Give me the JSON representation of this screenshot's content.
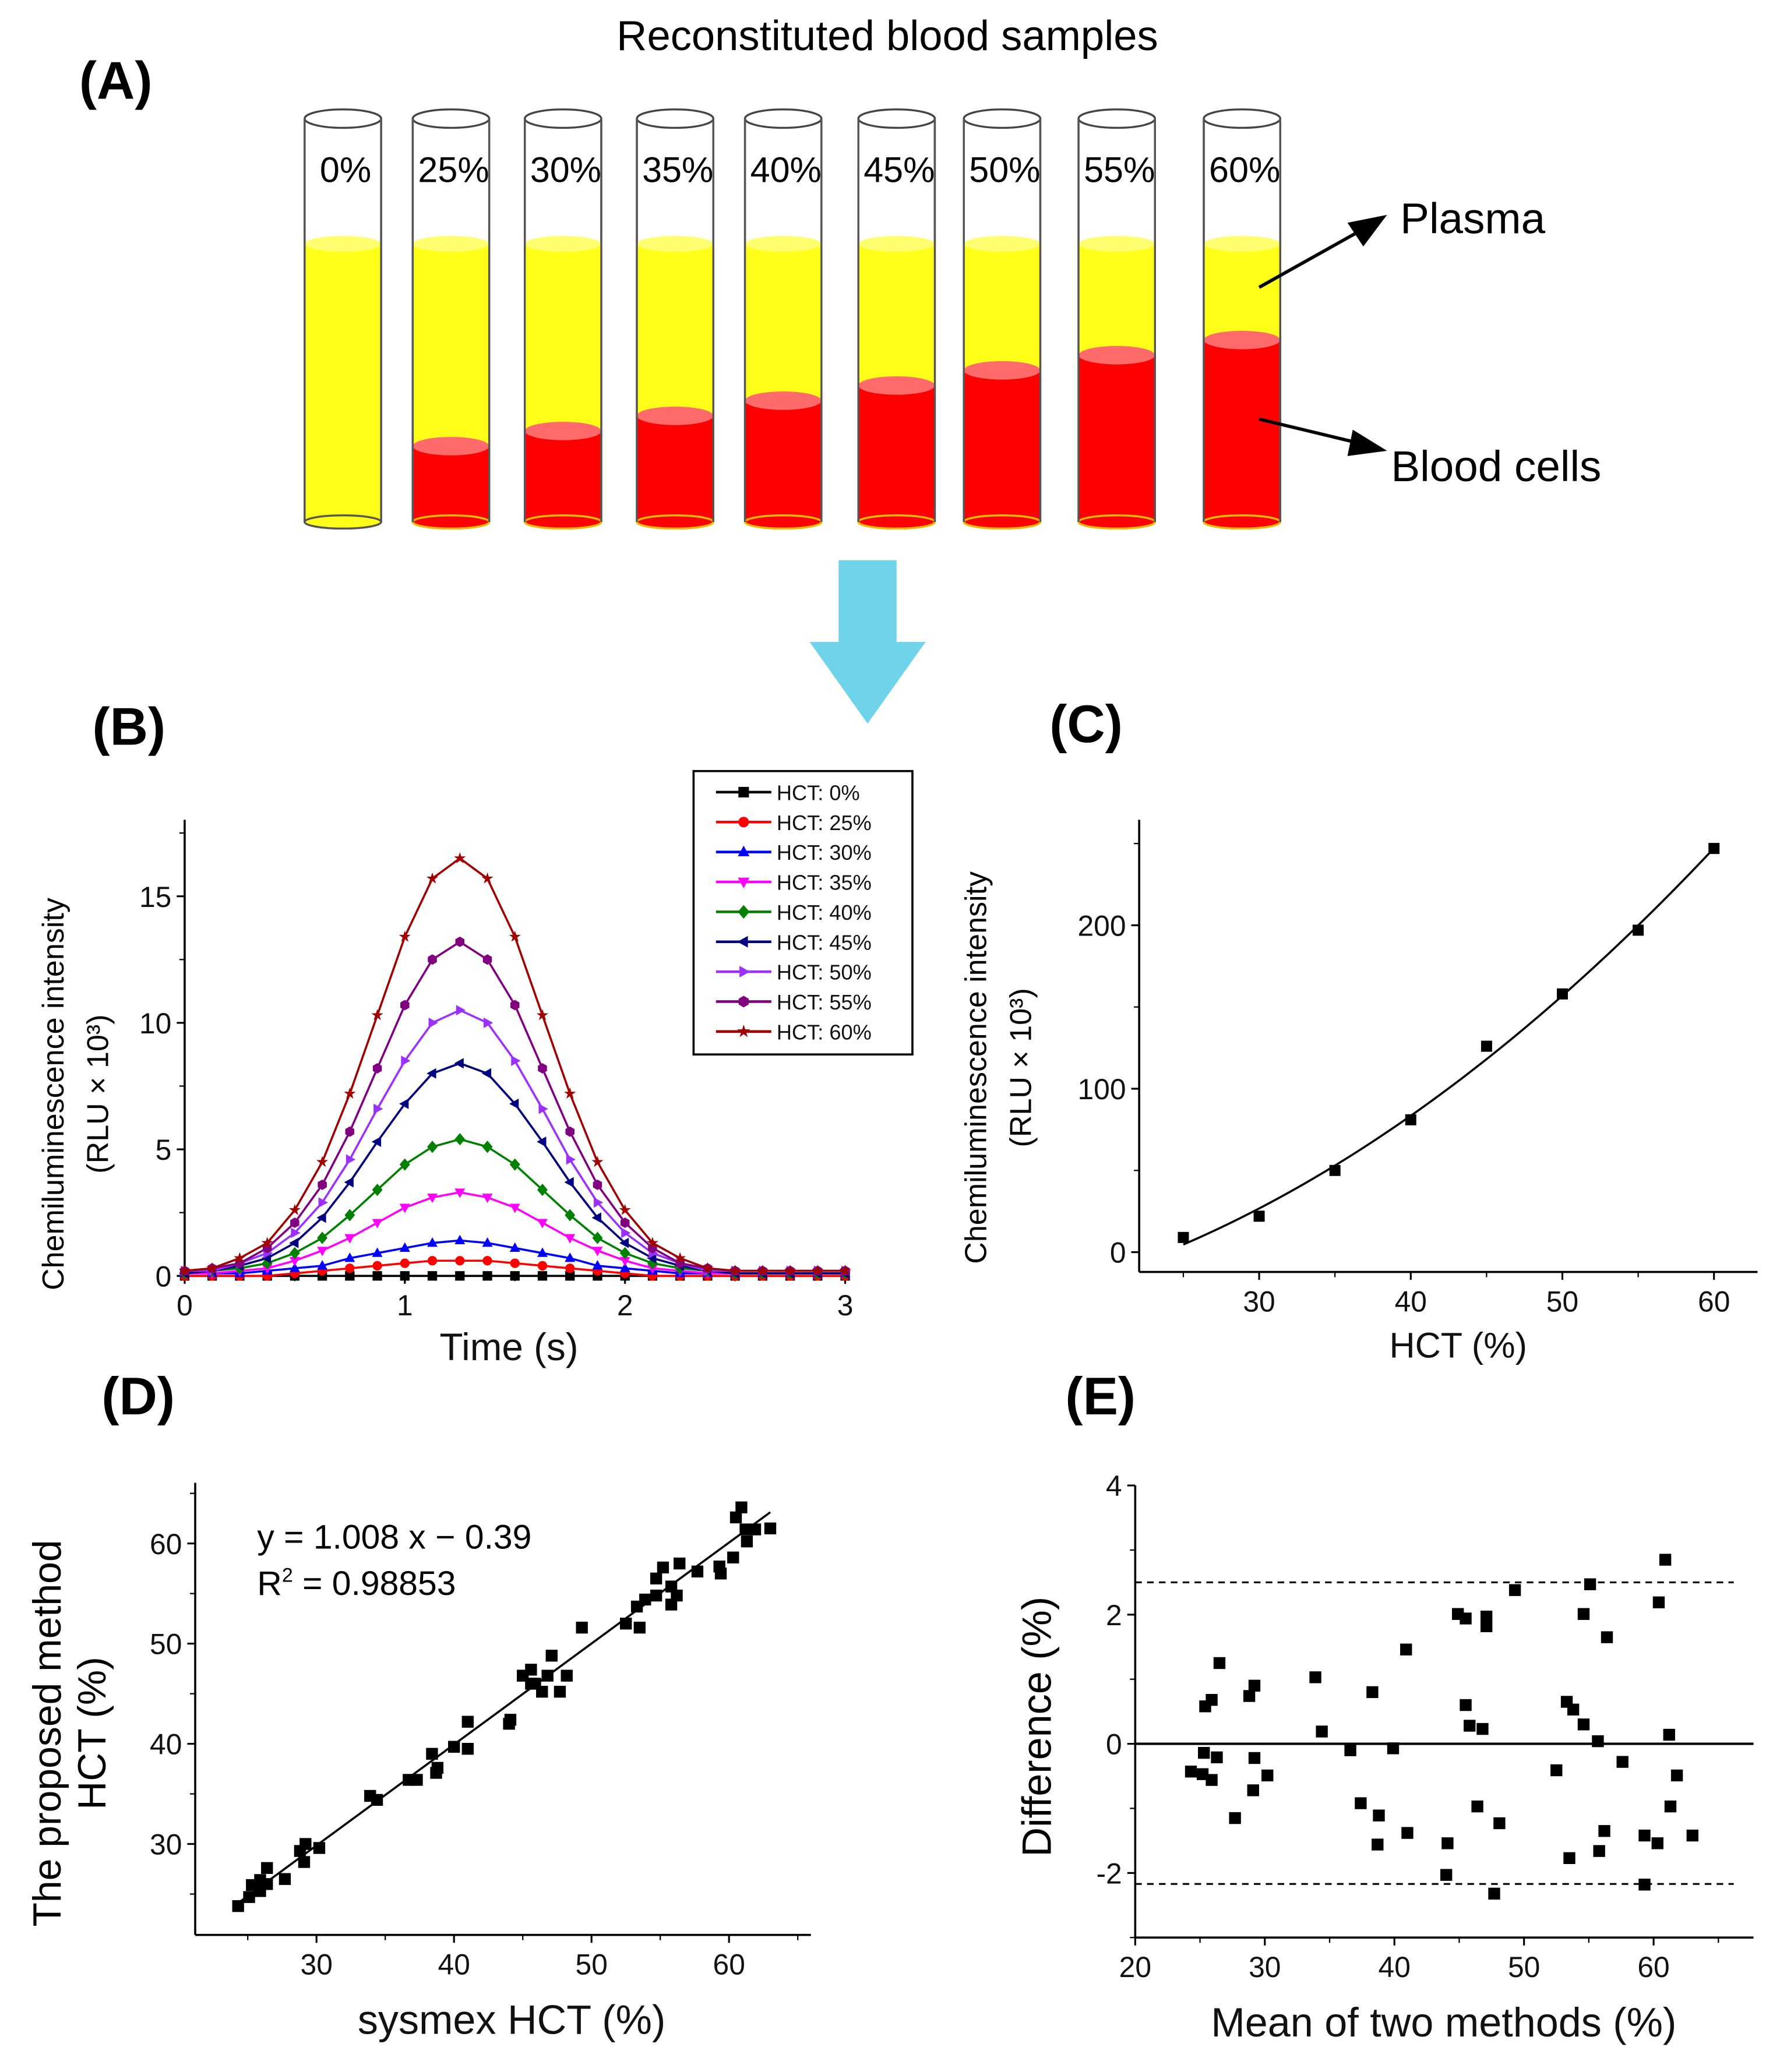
{
  "panelA": {
    "label": "(A)",
    "title": "Reconstituted blood samples",
    "tubes": [
      {
        "label": "0%",
        "hct": 0
      },
      {
        "label": "25%",
        "hct": 25
      },
      {
        "label": "30%",
        "hct": 30
      },
      {
        "label": "35%",
        "hct": 35
      },
      {
        "label": "40%",
        "hct": 40
      },
      {
        "label": "45%",
        "hct": 45
      },
      {
        "label": "50%",
        "hct": 50
      },
      {
        "label": "55%",
        "hct": 55
      },
      {
        "label": "60%",
        "hct": 60
      }
    ],
    "plasma_label": "Plasma",
    "cells_label": "Blood cells",
    "colors": {
      "plasma": "#ffff1a",
      "cells": "#ff0000",
      "arrow": "#6fd4ea"
    }
  },
  "chart_data": [
    {
      "panel_label": "(B)",
      "type": "line",
      "xlabel": "Time (s)",
      "ylabel": "Chemiluminescence intensity",
      "ylabel2": "(RLU × 10³)",
      "xlim": [
        0,
        3
      ],
      "ylim": [
        0,
        18
      ],
      "xticks": [
        "0",
        "1",
        "2",
        "3"
      ],
      "yticks": [
        "0",
        "5",
        "10",
        "15"
      ],
      "legend_position": "top-right",
      "x": [
        0,
        0.125,
        0.25,
        0.375,
        0.5,
        0.625,
        0.75,
        0.875,
        1.0,
        1.125,
        1.25,
        1.375,
        1.5,
        1.625,
        1.75,
        1.875,
        2.0,
        2.125,
        2.25,
        2.375,
        2.5,
        2.625,
        2.75,
        2.875,
        3.0
      ],
      "series": [
        {
          "name": "HCT: 0%",
          "color": "#000000",
          "marker": "square",
          "values": [
            0,
            0,
            0,
            0,
            0,
            0,
            0,
            0,
            0,
            0,
            0,
            0,
            0,
            0,
            0,
            0,
            0,
            0,
            0,
            0,
            0,
            0,
            0,
            0,
            0
          ]
        },
        {
          "name": "HCT: 25%",
          "color": "#ff0000",
          "marker": "circle",
          "values": [
            0,
            0,
            0,
            0,
            0.1,
            0.2,
            0.3,
            0.4,
            0.5,
            0.6,
            0.6,
            0.6,
            0.5,
            0.4,
            0.3,
            0.2,
            0.1,
            0,
            0,
            0,
            0,
            0,
            0,
            0,
            0
          ]
        },
        {
          "name": "HCT: 30%",
          "color": "#0000ff",
          "marker": "triangle-up",
          "values": [
            0.1,
            0.1,
            0.1,
            0.2,
            0.3,
            0.4,
            0.7,
            0.9,
            1.1,
            1.3,
            1.4,
            1.3,
            1.1,
            0.9,
            0.7,
            0.4,
            0.3,
            0.2,
            0.1,
            0.1,
            0.1,
            0.1,
            0.1,
            0.1,
            0.1
          ]
        },
        {
          "name": "HCT: 35%",
          "color": "#ff00ff",
          "marker": "triangle-down",
          "values": [
            0.1,
            0.1,
            0.2,
            0.3,
            0.6,
            1.0,
            1.5,
            2.1,
            2.7,
            3.1,
            3.3,
            3.1,
            2.7,
            2.1,
            1.5,
            1.0,
            0.6,
            0.3,
            0.2,
            0.1,
            0.1,
            0.1,
            0.1,
            0.1,
            0.1
          ]
        },
        {
          "name": "HCT: 40%",
          "color": "#008000",
          "marker": "diamond",
          "values": [
            0.1,
            0.2,
            0.3,
            0.5,
            0.9,
            1.5,
            2.4,
            3.4,
            4.4,
            5.1,
            5.4,
            5.1,
            4.4,
            3.4,
            2.4,
            1.5,
            0.9,
            0.5,
            0.3,
            0.2,
            0.1,
            0.1,
            0.1,
            0.1,
            0.1
          ]
        },
        {
          "name": "HCT: 45%",
          "color": "#000080",
          "marker": "triangle-left",
          "values": [
            0.1,
            0.2,
            0.4,
            0.7,
            1.3,
            2.3,
            3.7,
            5.3,
            6.8,
            8.0,
            8.4,
            8.0,
            6.8,
            5.3,
            3.7,
            2.3,
            1.3,
            0.7,
            0.4,
            0.2,
            0.1,
            0.1,
            0.1,
            0.1,
            0.1
          ]
        },
        {
          "name": "HCT: 50%",
          "color": "#9b30ff",
          "marker": "triangle-right",
          "values": [
            0.2,
            0.2,
            0.5,
            0.9,
            1.7,
            2.9,
            4.6,
            6.6,
            8.5,
            10.0,
            10.5,
            10.0,
            8.5,
            6.6,
            4.6,
            2.9,
            1.7,
            0.9,
            0.5,
            0.2,
            0.2,
            0.2,
            0.2,
            0.2,
            0.2
          ]
        },
        {
          "name": "HCT: 55%",
          "color": "#800080",
          "marker": "hexagon",
          "values": [
            0.2,
            0.3,
            0.5,
            1.1,
            2.1,
            3.6,
            5.7,
            8.2,
            10.7,
            12.5,
            13.2,
            12.5,
            10.7,
            8.2,
            5.7,
            3.6,
            2.1,
            1.1,
            0.5,
            0.3,
            0.2,
            0.2,
            0.2,
            0.2,
            0.2
          ]
        },
        {
          "name": "HCT: 60%",
          "color": "#a00000",
          "marker": "star",
          "values": [
            0.2,
            0.3,
            0.7,
            1.3,
            2.6,
            4.5,
            7.2,
            10.3,
            13.4,
            15.7,
            16.5,
            15.7,
            13.4,
            10.3,
            7.2,
            4.5,
            2.6,
            1.3,
            0.7,
            0.3,
            0.2,
            0.2,
            0.2,
            0.2,
            0.2
          ]
        }
      ]
    },
    {
      "panel_label": "(C)",
      "type": "scatter",
      "xlabel": "HCT (%)",
      "ylabel": "Chemiluminescence intensity",
      "ylabel2": "(RLU × 10³)",
      "xlim": [
        22,
        63
      ],
      "ylim": [
        -12,
        262
      ],
      "xticks": [
        "30",
        "40",
        "50",
        "60"
      ],
      "yticks": [
        "0",
        "100",
        "200"
      ],
      "fit": "curve",
      "x": [
        25,
        30,
        35,
        40,
        45,
        50,
        55,
        60
      ],
      "y": [
        9,
        22,
        50,
        81,
        126,
        158,
        197,
        247
      ]
    },
    {
      "panel_label": "(D)",
      "type": "scatter",
      "xlabel": "sysmex HCT (%)",
      "ylabel": "The proposed method",
      "ylabel2": "HCT (%)",
      "xlim": [
        21.2,
        66
      ],
      "ylim": [
        21,
        66
      ],
      "xticks": [
        "30",
        "40",
        "50",
        "60"
      ],
      "yticks": [
        "30",
        "40",
        "50",
        "60"
      ],
      "equation": "y = 1.008 x − 0.39",
      "r2_label": "R",
      "r2_sup": "2",
      "r2_value": " = 0.98853",
      "fit": {
        "slope": 1.008,
        "intercept": -0.39,
        "x_range": [
          24.3,
          63
        ]
      },
      "points": [
        [
          24.3,
          23.8
        ],
        [
          25.1,
          24.7
        ],
        [
          25.3,
          25.9
        ],
        [
          25.9,
          25.3
        ],
        [
          25.9,
          26.4
        ],
        [
          26.4,
          27.6
        ],
        [
          26.4,
          26.0
        ],
        [
          27.7,
          26.5
        ],
        [
          28.8,
          29.3
        ],
        [
          29.1,
          28.2
        ],
        [
          29.2,
          30.0
        ],
        [
          30.2,
          29.6
        ],
        [
          33.9,
          34.8
        ],
        [
          34.4,
          34.4
        ],
        [
          36.7,
          36.4
        ],
        [
          37.3,
          36.4
        ],
        [
          38.4,
          39.0
        ],
        [
          38.8,
          37.6
        ],
        [
          38.7,
          37.1
        ],
        [
          40.0,
          39.7
        ],
        [
          41.0,
          42.2
        ],
        [
          41.0,
          39.5
        ],
        [
          44.0,
          42.0
        ],
        [
          44.1,
          42.4
        ],
        [
          45.0,
          46.8
        ],
        [
          45.6,
          47.4
        ],
        [
          45.6,
          46.0
        ],
        [
          45.9,
          46.0
        ],
        [
          46.4,
          45.2
        ],
        [
          46.8,
          46.8
        ],
        [
          47.1,
          48.8
        ],
        [
          47.7,
          45.2
        ],
        [
          48.2,
          46.8
        ],
        [
          49.3,
          51.6
        ],
        [
          52.5,
          52.0
        ],
        [
          53.3,
          53.7
        ],
        [
          53.5,
          51.6
        ],
        [
          53.9,
          54.4
        ],
        [
          54.7,
          54.8
        ],
        [
          54.7,
          56.5
        ],
        [
          55.2,
          57.6
        ],
        [
          55.8,
          55.7
        ],
        [
          55.8,
          53.9
        ],
        [
          56.2,
          54.8
        ],
        [
          56.4,
          58.0
        ],
        [
          57.7,
          57.2
        ],
        [
          59.3,
          57.7
        ],
        [
          59.4,
          57.0
        ],
        [
          60.3,
          58.6
        ],
        [
          60.5,
          62.6
        ],
        [
          60.9,
          63.6
        ],
        [
          61.2,
          61.4
        ],
        [
          61.3,
          60.2
        ],
        [
          61.9,
          61.4
        ],
        [
          63.0,
          61.5
        ]
      ]
    },
    {
      "panel_label": "(E)",
      "type": "scatter",
      "xlabel": "Mean of two methods (%)",
      "ylabel": "Difference (%)",
      "xlim": [
        20,
        67.5
      ],
      "ylim": [
        -3,
        4
      ],
      "xticks": [
        "20",
        "30",
        "40",
        "50",
        "60"
      ],
      "yticks": [
        "-2",
        "0",
        "2",
        "4"
      ],
      "mean_line": 0,
      "limits_of_agreement": [
        2.5,
        -2.17
      ],
      "points": [
        [
          24.3,
          -0.43
        ],
        [
          25.3,
          -0.14
        ],
        [
          25.2,
          -0.47
        ],
        [
          25.4,
          0.58
        ],
        [
          25.9,
          0.68
        ],
        [
          25.9,
          -0.56
        ],
        [
          26.3,
          -0.21
        ],
        [
          26.5,
          1.25
        ],
        [
          27.7,
          -1.15
        ],
        [
          28.8,
          0.74
        ],
        [
          29.2,
          0.9
        ],
        [
          29.1,
          -0.72
        ],
        [
          29.2,
          -0.22
        ],
        [
          30.2,
          -0.49
        ],
        [
          33.9,
          1.03
        ],
        [
          34.4,
          0.19
        ],
        [
          36.6,
          -0.1
        ],
        [
          37.4,
          -0.92
        ],
        [
          38.3,
          0.8
        ],
        [
          38.8,
          -1.11
        ],
        [
          38.7,
          -1.56
        ],
        [
          39.9,
          -0.07
        ],
        [
          40.9,
          1.46
        ],
        [
          41.0,
          -1.38
        ],
        [
          44.1,
          -1.54
        ],
        [
          44.0,
          -2.03
        ],
        [
          44.9,
          2.01
        ],
        [
          45.5,
          1.94
        ],
        [
          45.5,
          0.6
        ],
        [
          45.8,
          0.28
        ],
        [
          46.4,
          -0.97
        ],
        [
          46.8,
          0.23
        ],
        [
          47.1,
          1.97
        ],
        [
          47.1,
          1.82
        ],
        [
          47.7,
          -2.32
        ],
        [
          48.1,
          -1.23
        ],
        [
          49.3,
          2.38
        ],
        [
          52.5,
          -0.41
        ],
        [
          53.3,
          0.65
        ],
        [
          53.8,
          0.53
        ],
        [
          53.5,
          -1.77
        ],
        [
          54.6,
          2.01
        ],
        [
          54.6,
          0.3
        ],
        [
          55.1,
          2.47
        ],
        [
          55.7,
          0.04
        ],
        [
          55.8,
          -1.66
        ],
        [
          56.2,
          -1.35
        ],
        [
          56.4,
          1.65
        ],
        [
          57.6,
          -0.28
        ],
        [
          59.3,
          -1.42
        ],
        [
          59.3,
          -2.18
        ],
        [
          60.3,
          -1.54
        ],
        [
          60.4,
          2.19
        ],
        [
          60.9,
          2.85
        ],
        [
          61.2,
          0.14
        ],
        [
          61.3,
          -0.97
        ],
        [
          61.8,
          -0.49
        ],
        [
          63.0,
          -1.42
        ]
      ]
    }
  ]
}
